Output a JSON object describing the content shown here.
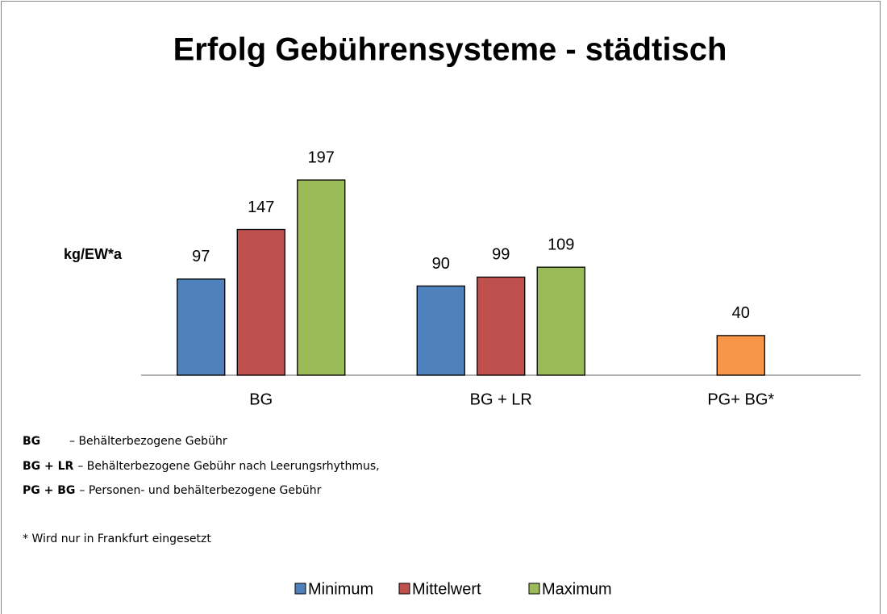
{
  "chart_data": {
    "type": "bar",
    "title": "Erfolg Gebührensysteme - städtisch",
    "ylabel": "kg/EW*a",
    "categories": [
      "BG",
      "BG + LR",
      "PG+ BG*"
    ],
    "series": [
      {
        "name": "Minimum",
        "color": "#4f81bd",
        "values": [
          97,
          90,
          null
        ]
      },
      {
        "name": "Mittelwert",
        "color": "#c0504d",
        "point_colors": [
          null,
          null,
          "#f79646"
        ],
        "values": [
          147,
          99,
          40
        ]
      },
      {
        "name": "Maximum",
        "color": "#9bbb59",
        "values": [
          197,
          109,
          null
        ]
      }
    ],
    "ylim": [
      0,
      250
    ],
    "notes": [
      {
        "abbr": "BG",
        "text": "– Behälterbezogene Gebühr"
      },
      {
        "abbr": "BG + LR",
        "text": "– Behälterbezogene Gebühr nach Leerungsrhythmus,"
      },
      {
        "abbr": "PG + BG",
        "text": "– Personen- und behälterbezogene Gebühr"
      }
    ],
    "footnote": "* Wird nur in Frankfurt eingesetzt",
    "legend": "bottom"
  }
}
